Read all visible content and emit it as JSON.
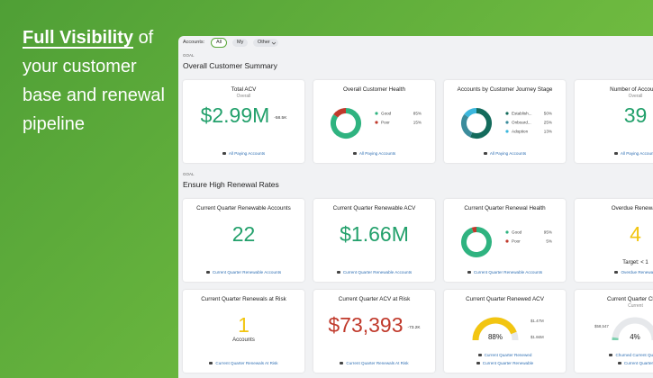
{
  "headline": {
    "emphasis": "Full Visibility",
    "rest": "of your customer base and renewal pipeline"
  },
  "filter": {
    "label": "Accounts:",
    "options": [
      "All",
      "My",
      "Other"
    ]
  },
  "sections": [
    {
      "eyebrow": "GOAL",
      "title": "Overall Customer Summary",
      "rows": [
        [
          {
            "kind": "metric",
            "title": "Total ACV",
            "subtitle": "Overall",
            "value": "$2.99M",
            "color": "#22a06b",
            "delta": "-58.5K",
            "footer": [
              "All Paying Accounts"
            ]
          },
          {
            "kind": "donut",
            "title": "Overall Customer Health",
            "segments": [
              {
                "name": "Good",
                "value": 85,
                "label": "85%",
                "color": "#2fb380"
              },
              {
                "name": "Poor",
                "value": 15,
                "label": "15%",
                "color": "#c0392b"
              }
            ],
            "footer": [
              "All Paying Accounts"
            ]
          },
          {
            "kind": "donut",
            "title": "Accounts by Customer Journey Stage",
            "segments": [
              {
                "name": "Establish...",
                "value": 50,
                "label": "50%",
                "color": "#146b5c"
              },
              {
                "name": "Onboard...",
                "value": 25,
                "label": "25%",
                "color": "#3b8c9c"
              },
              {
                "name": "Adoption",
                "value": 13,
                "label": "13%",
                "color": "#3bb7dd"
              }
            ],
            "footer": [
              "All Paying Accounts"
            ]
          },
          {
            "kind": "metric",
            "title": "Number of Accounts",
            "subtitle": "Overall",
            "value": "39",
            "color": "#22a06b",
            "footer": [
              "All Paying Accounts"
            ]
          }
        ]
      ]
    },
    {
      "eyebrow": "GOAL",
      "title": "Ensure High Renewal Rates",
      "rows": [
        [
          {
            "kind": "metric",
            "title": "Current Quarter Renewable Accounts",
            "value": "22",
            "color": "#22a06b",
            "footer": [
              "Current Quarter Renewable Accounts"
            ]
          },
          {
            "kind": "metric",
            "title": "Current Quarter Renewable ACV",
            "value": "$1.66M",
            "color": "#22a06b",
            "footer": [
              "Current Quarter Renewable Accounts"
            ]
          },
          {
            "kind": "donut",
            "title": "Current Quarter Renewal Health",
            "segments": [
              {
                "name": "Good",
                "value": 95,
                "label": "95%",
                "color": "#2fb380"
              },
              {
                "name": "Poor",
                "value": 5,
                "label": "5%",
                "color": "#c0392b"
              }
            ],
            "footer": [
              "Current Quarter Renewable Accounts"
            ]
          },
          {
            "kind": "metric",
            "title": "Overdue Renewals",
            "value": "4",
            "color": "#f2c511",
            "target": "Target: < 1",
            "footer": [
              "Overdue Renewals"
            ]
          }
        ],
        [
          {
            "kind": "metric",
            "title": "Current Quarter Renewals at Risk",
            "value": "1",
            "color": "#f2c511",
            "unit": "Accounts",
            "footer": [
              "Current Quarter Renewals At Risk"
            ]
          },
          {
            "kind": "metric",
            "title": "Current Quarter ACV at Risk",
            "value": "$73,393",
            "color": "#c0392b",
            "delta": "-73.2K",
            "footer": [
              "Current Quarter Renewals At Risk"
            ]
          },
          {
            "kind": "gauge",
            "title": "Current Quarter Renewed ACV",
            "value": 88,
            "label": "88%",
            "color": "#f2c511",
            "side_labels": [
              "$1.47M",
              "$1.66M"
            ],
            "footer": [
              "Current Quarter Renewed",
              "Current Quarter Renewable"
            ]
          },
          {
            "kind": "gauge",
            "title": "Current Quarter Churn",
            "subtitle": "Current",
            "value": 4,
            "label": "4%",
            "color": "#7fd1b0",
            "side_labels": [
              "$58,547"
            ],
            "footer": [
              "Churned Current Quarter",
              "Current Quarter"
            ]
          }
        ]
      ]
    }
  ]
}
